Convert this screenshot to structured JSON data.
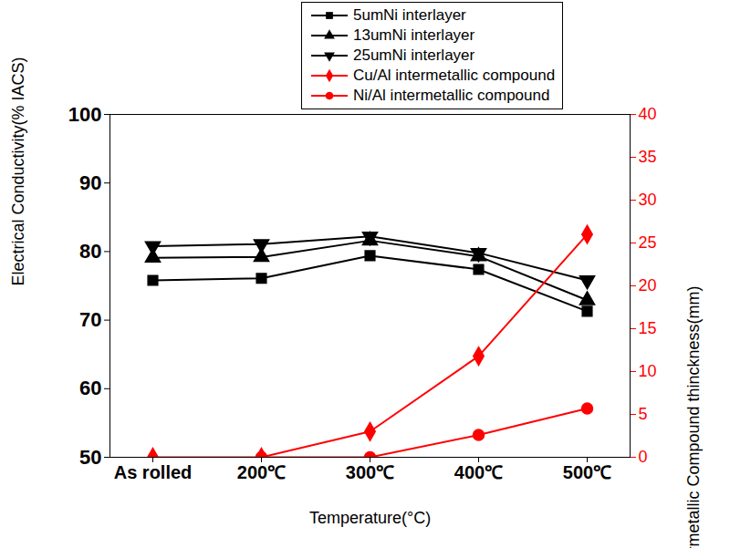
{
  "chart_data": {
    "type": "line",
    "x_label": "Temperature(°C)",
    "y_label": "Electrical Conductivity(% IACS)",
    "y2_label": "Intermetallic Compound thinckness(mm)",
    "categories": [
      "As rolled",
      "200℃",
      "300℃",
      "400℃",
      "500℃"
    ],
    "ylim": [
      50,
      100
    ],
    "yticks": [
      50,
      60,
      70,
      80,
      90,
      100
    ],
    "y2lim": [
      0,
      40
    ],
    "y2ticks": [
      0,
      5,
      10,
      15,
      20,
      25,
      30,
      35,
      40
    ],
    "grid": false,
    "legend": "top",
    "series": [
      {
        "name": "5umNi interlayer",
        "color": "#000000",
        "marker": "square",
        "values": [
          75.8,
          76.1,
          79.4,
          77.4,
          71.3
        ]
      },
      {
        "name": "13umNi interlayer",
        "color": "#000000",
        "marker": "triangle",
        "values": [
          79.1,
          79.2,
          81.6,
          79.3,
          72.9
        ]
      },
      {
        "name": "25umNi interlayer",
        "color": "#000000",
        "marker": "triangle-down",
        "values": [
          80.8,
          81.1,
          82.2,
          79.8,
          75.8
        ]
      },
      {
        "name": "Cu/Al intermetallic compound",
        "color": "#ff0000",
        "marker": "diamond",
        "axis": "y2",
        "values": [
          0,
          0,
          3,
          11.8,
          26
        ]
      },
      {
        "name": "Ni/Al intermetallic compound",
        "color": "#ff0000",
        "marker": "circle",
        "axis": "y2",
        "values": [
          null,
          0,
          0,
          2.6,
          5.7
        ]
      }
    ]
  }
}
